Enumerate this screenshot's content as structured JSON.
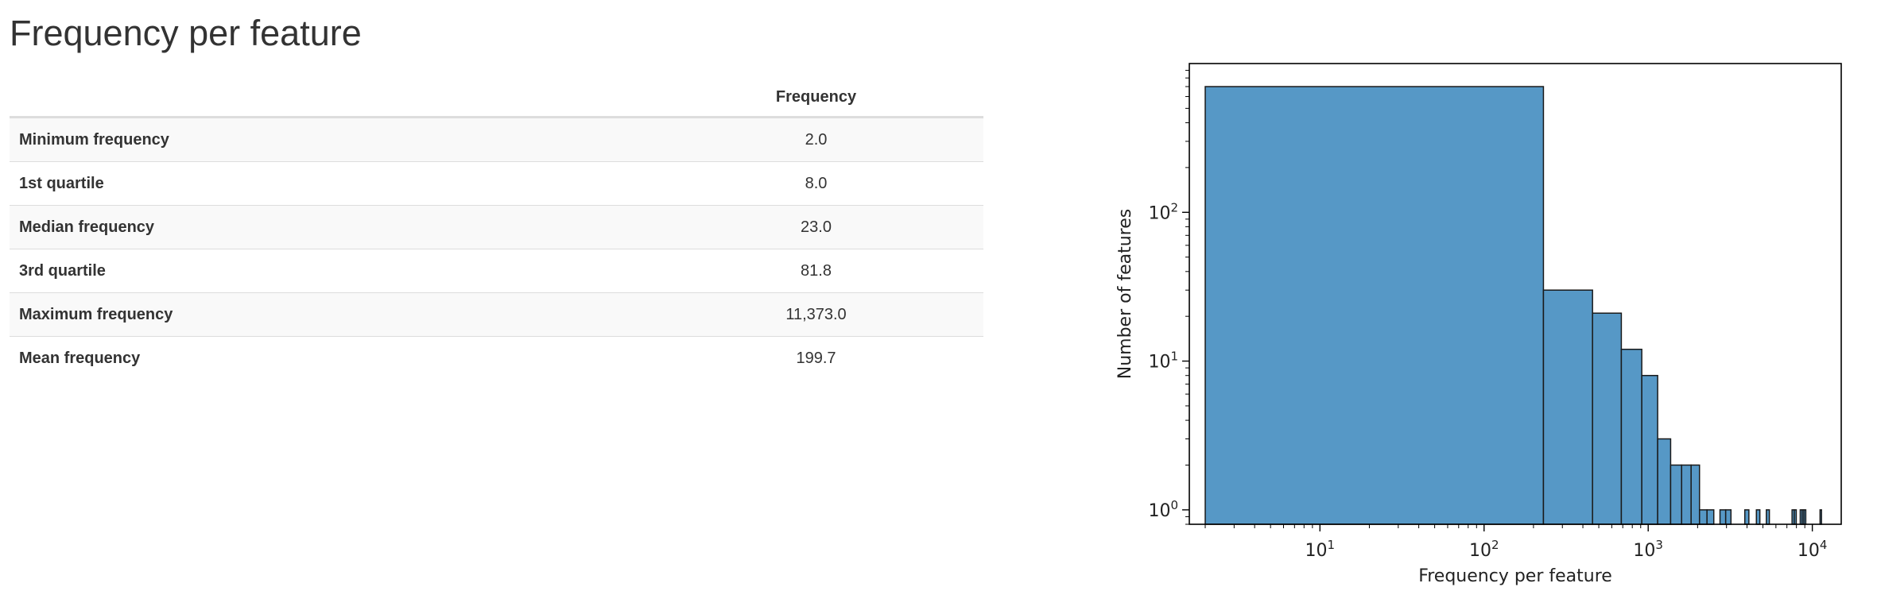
{
  "page": {
    "title": "Frequency per feature"
  },
  "table": {
    "column_header": "Frequency",
    "rows": [
      {
        "label": "Minimum frequency",
        "value": "2.0"
      },
      {
        "label": "1st quartile",
        "value": "8.0"
      },
      {
        "label": "Median frequency",
        "value": "23.0"
      },
      {
        "label": "3rd quartile",
        "value": "81.8"
      },
      {
        "label": "Maximum frequency",
        "value": "11,373.0"
      },
      {
        "label": "Mean frequency",
        "value": "199.7"
      }
    ]
  },
  "chart_data": {
    "type": "bar",
    "xlabel": "Frequency per feature",
    "ylabel": "Number of features",
    "xscale": "log",
    "yscale": "log",
    "xlim": [
      1.6,
      15000
    ],
    "ylim": [
      0.8,
      1000
    ],
    "xticks": [
      10,
      100,
      1000,
      10000
    ],
    "xtick_labels": [
      "10^1",
      "10^2",
      "10^3",
      "10^4"
    ],
    "yticks": [
      1,
      10,
      100
    ],
    "ytick_labels": [
      "10^0",
      "10^1",
      "10^2"
    ],
    "bar_color": "#5698c6",
    "bins": [
      {
        "x0": 2,
        "x1": 230,
        "count": 700
      },
      {
        "x0": 230,
        "x1": 458,
        "count": 30
      },
      {
        "x0": 458,
        "x1": 686,
        "count": 21
      },
      {
        "x0": 686,
        "x1": 914,
        "count": 12
      },
      {
        "x0": 914,
        "x1": 1142,
        "count": 8
      },
      {
        "x0": 1142,
        "x1": 1370,
        "count": 3
      },
      {
        "x0": 1370,
        "x1": 1598,
        "count": 2
      },
      {
        "x0": 1598,
        "x1": 1826,
        "count": 2
      },
      {
        "x0": 1826,
        "x1": 2054,
        "count": 2
      },
      {
        "x0": 2054,
        "x1": 2282,
        "count": 1
      },
      {
        "x0": 2282,
        "x1": 2510,
        "count": 1
      },
      {
        "x0": 2738,
        "x1": 2966,
        "count": 1
      },
      {
        "x0": 2966,
        "x1": 3194,
        "count": 1
      },
      {
        "x0": 3878,
        "x1": 4106,
        "count": 1
      },
      {
        "x0": 4562,
        "x1": 4790,
        "count": 1
      },
      {
        "x0": 5246,
        "x1": 5474,
        "count": 1
      },
      {
        "x0": 7526,
        "x1": 7754,
        "count": 1
      },
      {
        "x0": 7754,
        "x1": 7982,
        "count": 1
      },
      {
        "x0": 8438,
        "x1": 8666,
        "count": 1
      },
      {
        "x0": 8666,
        "x1": 8894,
        "count": 1
      },
      {
        "x0": 8894,
        "x1": 9122,
        "count": 1
      },
      {
        "x0": 11144,
        "x1": 11373,
        "count": 1
      }
    ]
  }
}
